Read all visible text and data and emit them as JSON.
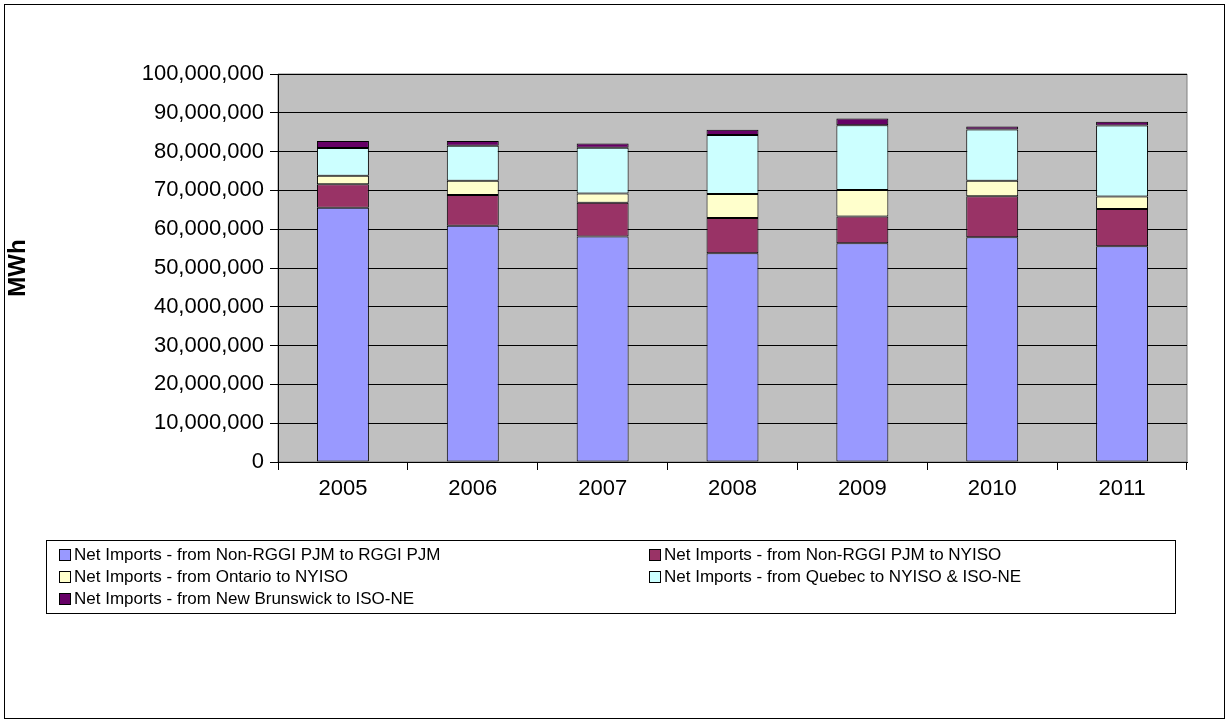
{
  "chart_data": {
    "type": "bar",
    "stacked": true,
    "ylabel": "MWh",
    "categories": [
      "2005",
      "2006",
      "2007",
      "2008",
      "2009",
      "2010",
      "2011"
    ],
    "ylim": [
      0,
      100000000
    ],
    "yticks": [
      {
        "value": 0,
        "label": "0"
      },
      {
        "value": 10000000,
        "label": "10,000,000"
      },
      {
        "value": 20000000,
        "label": "20,000,000"
      },
      {
        "value": 30000000,
        "label": "30,000,000"
      },
      {
        "value": 40000000,
        "label": "40,000,000"
      },
      {
        "value": 50000000,
        "label": "50,000,000"
      },
      {
        "value": 60000000,
        "label": "60,000,000"
      },
      {
        "value": 70000000,
        "label": "70,000,000"
      },
      {
        "value": 80000000,
        "label": "80,000,000"
      },
      {
        "value": 90000000,
        "label": "90,000,000"
      },
      {
        "value": 100000000,
        "label": "100,000,000"
      }
    ],
    "grid": "y",
    "legend": "bottom",
    "series": [
      {
        "name": "Net Imports - from Non-RGGI PJM to RGGI PJM",
        "color": "#9999ff",
        "values": [
          65500000,
          60900000,
          58100000,
          53800000,
          56400000,
          57900000,
          55600000
        ]
      },
      {
        "name": "Net Imports - from Non-RGGI PJM to NYISO",
        "color": "#993366",
        "values": [
          6100000,
          7900000,
          8700000,
          9100000,
          6900000,
          10600000,
          9600000
        ]
      },
      {
        "name": "Net Imports - from Ontario to NYISO",
        "color": "#ffffcc",
        "values": [
          2200000,
          3700000,
          2400000,
          6200000,
          6800000,
          4000000,
          3200000
        ]
      },
      {
        "name": "Net Imports - from Quebec to NYISO & ISO-NE",
        "color": "#ccffff",
        "values": [
          7100000,
          9000000,
          11800000,
          15200000,
          16700000,
          13200000,
          18300000
        ]
      },
      {
        "name": "Net Imports - from New Brunswick to ISO-NE",
        "color": "#660066",
        "values": [
          1800000,
          1200000,
          1100000,
          1300000,
          1700000,
          800000,
          1000000
        ]
      }
    ]
  }
}
